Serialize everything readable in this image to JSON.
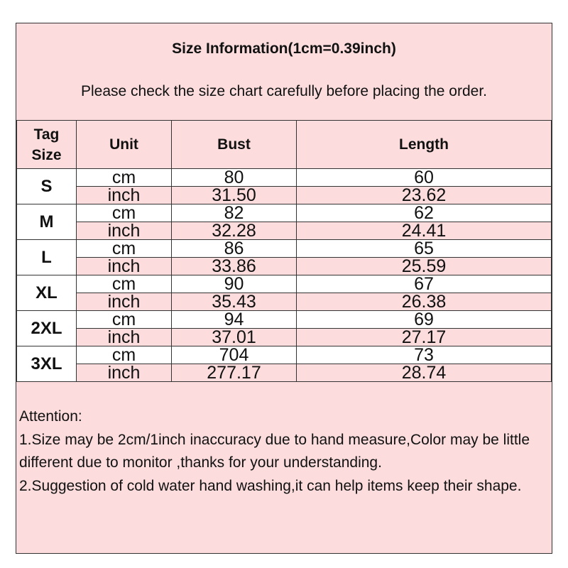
{
  "title": "Size Information(1cm=0.39inch)",
  "subtitle": "Please check the size chart carefully before placing the order.",
  "headers": {
    "tag_size_1": "Tag",
    "tag_size_2": "Size",
    "unit": "Unit",
    "bust": "Bust",
    "length": "Length"
  },
  "rows": [
    {
      "size": "S",
      "cm": {
        "unit": "cm",
        "bust": "80",
        "length": "60"
      },
      "inch": {
        "unit": "inch",
        "bust": "31.50",
        "length": "23.62"
      }
    },
    {
      "size": "M",
      "cm": {
        "unit": "cm",
        "bust": "82",
        "length": "62"
      },
      "inch": {
        "unit": "inch",
        "bust": "32.28",
        "length": "24.41"
      }
    },
    {
      "size": "L",
      "cm": {
        "unit": "cm",
        "bust": "86",
        "length": "65"
      },
      "inch": {
        "unit": "inch",
        "bust": "33.86",
        "length": "25.59"
      }
    },
    {
      "size": "XL",
      "cm": {
        "unit": "cm",
        "bust": "90",
        "length": "67"
      },
      "inch": {
        "unit": "inch",
        "bust": "35.43",
        "length": "26.38"
      }
    },
    {
      "size": "2XL",
      "cm": {
        "unit": "cm",
        "bust": "94",
        "length": "69"
      },
      "inch": {
        "unit": "inch",
        "bust": "37.01",
        "length": "27.17"
      }
    },
    {
      "size": "3XL",
      "cm": {
        "unit": "cm",
        "bust": "704",
        "length": "73"
      },
      "inch": {
        "unit": "inch",
        "bust": "277.17",
        "length": "28.74"
      }
    }
  ],
  "notes": {
    "heading": "Attention:",
    "note1": "1.Size may be 2cm/1inch inaccuracy due to hand measure,Color may be little different due to monitor ,thanks for your understanding.",
    "note2": "2.Suggestion of cold water hand washing,it can help items keep their shape."
  },
  "colors": {
    "pink": "#fcdcdc",
    "border": "#333333"
  }
}
